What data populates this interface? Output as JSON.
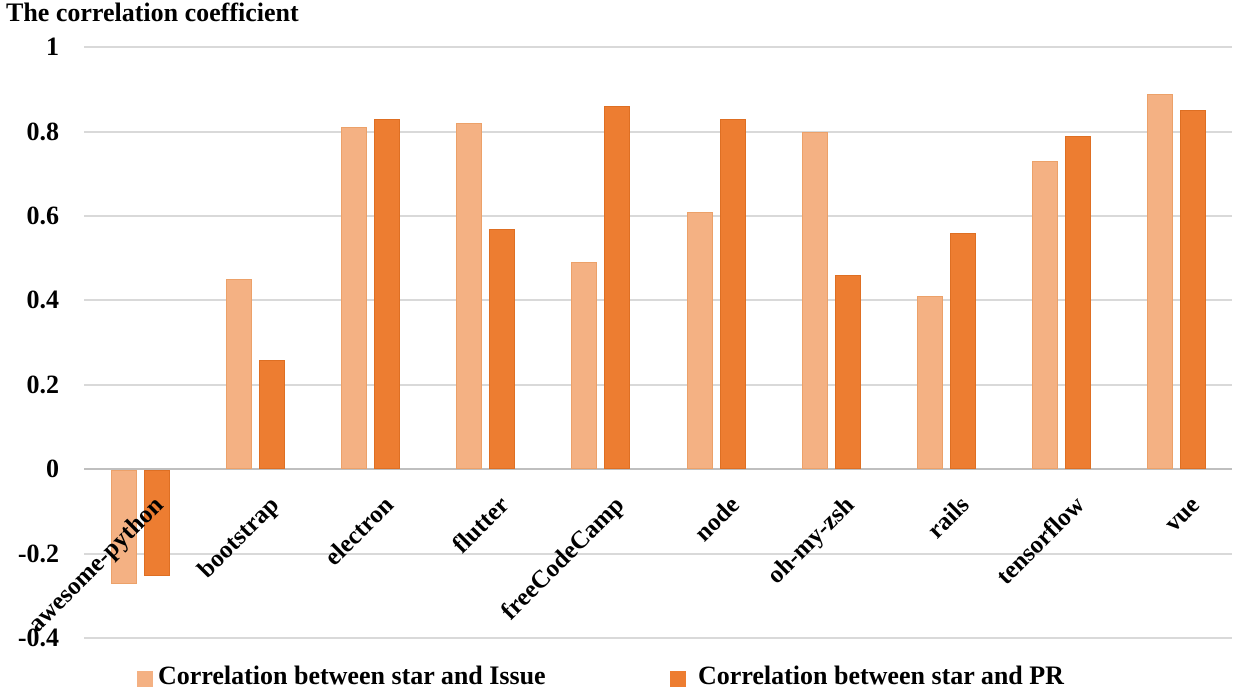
{
  "chart_data": {
    "type": "bar",
    "title": "The correlation coefficient",
    "categories": [
      "awesome-python",
      "bootstrap",
      "electron",
      "flutter",
      "freeCodeCamp",
      "node",
      "oh-my-zsh",
      "rails",
      "tensorflow",
      "vue"
    ],
    "series": [
      {
        "name": "Correlation between star and Issue",
        "color": "#F4B183",
        "border_color": "#ECA169",
        "values": [
          -0.27,
          0.45,
          0.81,
          0.82,
          0.49,
          0.61,
          0.8,
          0.41,
          0.73,
          0.89
        ]
      },
      {
        "name": "Correlation between star and PR",
        "color": "#ED7D31",
        "border_color": "#DE6F23",
        "values": [
          -0.25,
          0.26,
          0.83,
          0.57,
          0.86,
          0.83,
          0.46,
          0.56,
          0.79,
          0.85
        ]
      }
    ],
    "ylim": [
      -0.4,
      1.0
    ],
    "ytick_step": 0.2,
    "yticks": [
      {
        "value": 1,
        "label": "1"
      },
      {
        "value": 0.8,
        "label": "0.8"
      },
      {
        "value": 0.6,
        "label": "0.6"
      },
      {
        "value": 0.4,
        "label": "0.4"
      },
      {
        "value": 0.2,
        "label": "0.2"
      },
      {
        "value": 0,
        "label": "0"
      },
      {
        "value": -0.2,
        "label": "-0.2"
      },
      {
        "value": -0.4,
        "label": "-0.4"
      }
    ],
    "grid": true,
    "gridline_color": "#D9D9D9",
    "zero_line_color": "#BFBFBF",
    "text_color": "#000000",
    "background_color": "#FFFFFF",
    "legend_position": "bottom"
  }
}
